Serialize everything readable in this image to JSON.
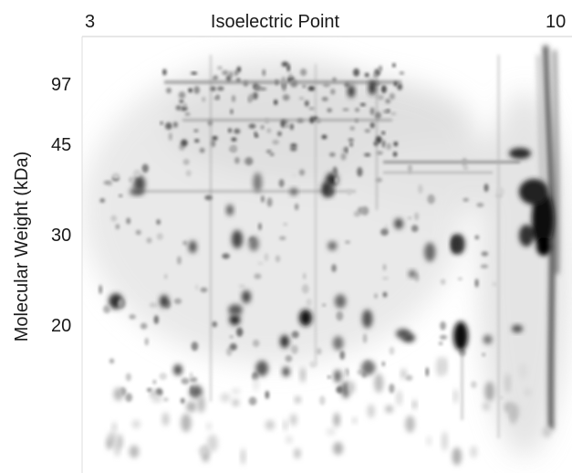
{
  "figure": {
    "x_axis": {
      "title": "Isoelectric Point",
      "left_label": "3",
      "right_label": "10"
    },
    "y_axis": {
      "title": "Molecular Weight (kDa)",
      "ticks": [
        "97",
        "45",
        "30",
        "20"
      ]
    },
    "image_description": "2D gel electrophoresis spots"
  }
}
